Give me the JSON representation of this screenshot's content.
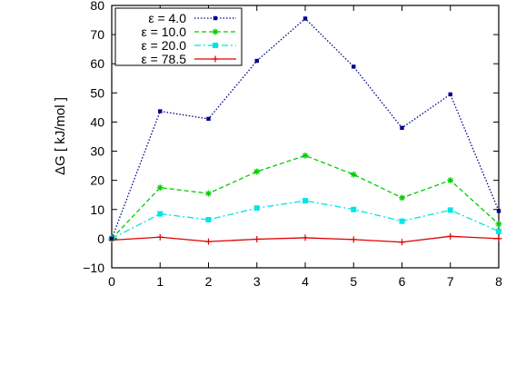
{
  "chart_data": {
    "type": "line",
    "title": "",
    "xlabel": "",
    "ylabel": "ΔG [ kJ/mol ]",
    "xlim": [
      0,
      8
    ],
    "ylim": [
      -10,
      80
    ],
    "grid": false,
    "legend_position": "top-left",
    "x_ticks": [
      "0",
      "1",
      "2",
      "3",
      "4",
      "5",
      "6",
      "7",
      "8"
    ],
    "y_ticks": [
      "−10",
      "0",
      "10",
      "20",
      "30",
      "40",
      "50",
      "60",
      "70",
      "80"
    ],
    "x": [
      0,
      1,
      2,
      3,
      4,
      5,
      6,
      7,
      8
    ],
    "series": [
      {
        "name": "ε =  4.0",
        "values": [
          0,
          43.7,
          41.1,
          61,
          75.5,
          59,
          38,
          49.5,
          9.5
        ],
        "color": "#00008b",
        "line_style": "dotted",
        "marker": "filled-square-small"
      },
      {
        "name": "ε = 10.0",
        "values": [
          0,
          17.5,
          15.5,
          23,
          28.5,
          22,
          14,
          20,
          5
        ],
        "color": "#00cc00",
        "line_style": "dashed",
        "marker": "star"
      },
      {
        "name": "ε = 20.0",
        "values": [
          0,
          8.5,
          6.5,
          10.5,
          13,
          10,
          6,
          9.8,
          2.5
        ],
        "color": "#00e5e5",
        "line_style": "dash-dot",
        "marker": "filled-square"
      },
      {
        "name": "ε = 78.5",
        "values": [
          -0.5,
          0.5,
          -1,
          -0.2,
          0.3,
          -0.3,
          -1.2,
          0.8,
          0
        ],
        "color": "#dd0000",
        "line_style": "solid",
        "marker": "plus"
      }
    ]
  }
}
